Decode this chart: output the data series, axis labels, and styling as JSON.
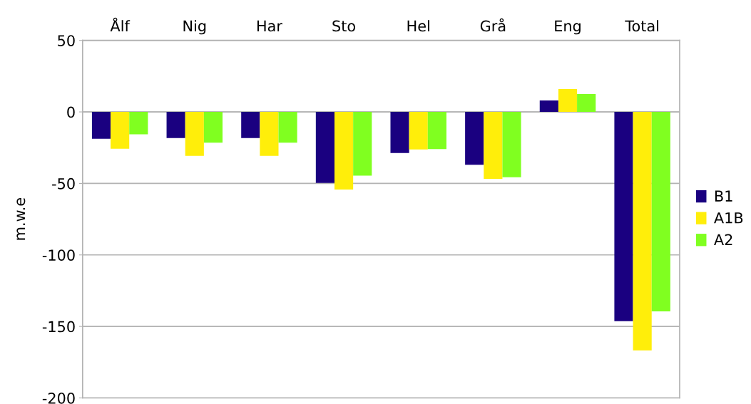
{
  "chart_data": {
    "type": "bar",
    "ylabel": "m.w.e",
    "categories": [
      "Ålf",
      "Nig",
      "Har",
      "Sto",
      "Hel",
      "Grå",
      "Eng",
      "Total"
    ],
    "series": [
      {
        "name": "B1",
        "color": "#1a0080",
        "values": [
          -18.8,
          -18.3,
          -18.3,
          -49.7,
          -28.7,
          -37,
          8,
          -146.3
        ]
      },
      {
        "name": "A1B",
        "color": "#ffee0a",
        "values": [
          -25.8,
          -30.7,
          -30.7,
          -54.3,
          -26.2,
          -46.8,
          16,
          -166.8
        ]
      },
      {
        "name": "A2",
        "color": "#80ff20",
        "values": [
          -15.7,
          -21.5,
          -21.5,
          -44.5,
          -26,
          -45.7,
          12.5,
          -139.5
        ]
      }
    ],
    "ylim": [
      -200,
      50
    ],
    "yticks": [
      -200,
      -150,
      -100,
      -50,
      0,
      50
    ],
    "grid": "y",
    "legend": "right"
  }
}
